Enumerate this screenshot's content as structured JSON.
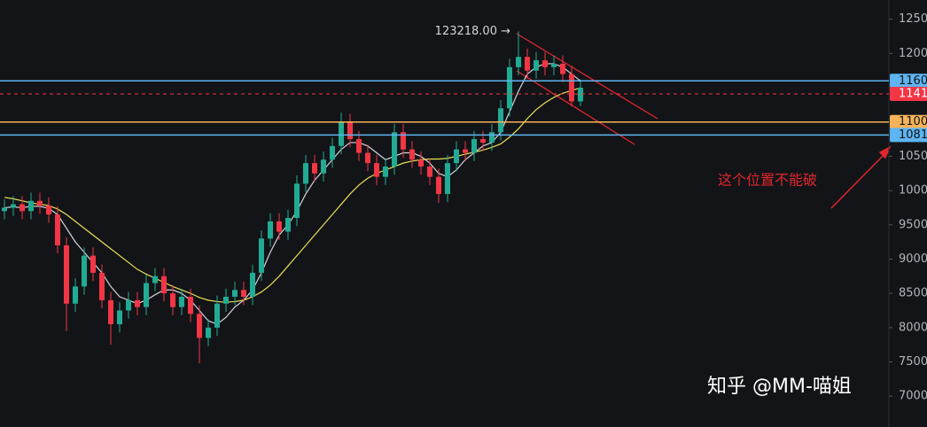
{
  "chart_data": {
    "type": "candlestick",
    "open": [
      97000,
      97500,
      98000,
      97000,
      98500,
      97800,
      96500,
      92000,
      83500,
      86000,
      90500,
      88000,
      84000,
      80500,
      82500,
      84000,
      83000,
      86500,
      87500,
      85000,
      83000,
      84500,
      82000,
      78500,
      80000,
      83500,
      84500,
      85500,
      84500,
      88000,
      93000,
      95500,
      94000,
      96000,
      101000,
      104000,
      102500,
      104500,
      106500,
      110000,
      107500,
      105500,
      104000,
      102000,
      103500,
      108500,
      106000,
      104500,
      103500,
      102000,
      99500,
      104000,
      106000,
      105500,
      107500,
      107000,
      108500,
      112000,
      118000,
      119500,
      117500,
      119000,
      118000,
      118500,
      117000,
      113000
    ],
    "high": [
      98700,
      99200,
      99200,
      99700,
      99700,
      99000,
      97700,
      93200,
      87200,
      91700,
      91700,
      89200,
      85200,
      83700,
      85200,
      85200,
      87700,
      88700,
      88700,
      86200,
      85700,
      85700,
      83200,
      81200,
      84700,
      85700,
      86700,
      86700,
      89200,
      94200,
      96700,
      96700,
      97200,
      102200,
      105200,
      105200,
      105700,
      107700,
      111400,
      111200,
      108700,
      106700,
      105200,
      104700,
      109700,
      109700,
      107200,
      105700,
      104700,
      103200,
      105200,
      107200,
      107200,
      108700,
      108700,
      109700,
      113200,
      119200,
      123218,
      120700,
      120200,
      120200,
      119700,
      119700,
      118200,
      116200
    ],
    "low": [
      95800,
      96300,
      95800,
      95800,
      96600,
      95300,
      90800,
      79500,
      82300,
      84800,
      86800,
      82800,
      77500,
      79300,
      81300,
      81800,
      81800,
      85300,
      83800,
      81800,
      81800,
      80800,
      74800,
      77300,
      78800,
      82300,
      83300,
      83300,
      83300,
      86800,
      91800,
      92800,
      92800,
      94800,
      99800,
      101300,
      101300,
      103300,
      105300,
      106300,
      104300,
      102800,
      100800,
      100800,
      102300,
      104800,
      103300,
      102300,
      100800,
      98200,
      98300,
      102800,
      104300,
      104300,
      105800,
      105800,
      107300,
      110800,
      116800,
      116300,
      116300,
      116800,
      116800,
      115800,
      112300,
      112300
    ],
    "close": [
      97500,
      98000,
      97000,
      98500,
      97800,
      96500,
      92000,
      83500,
      86000,
      90500,
      88000,
      84000,
      80500,
      82500,
      84000,
      83000,
      86500,
      87500,
      85000,
      83000,
      84500,
      82000,
      78500,
      80000,
      83500,
      84500,
      85500,
      84500,
      88000,
      93000,
      95500,
      94000,
      96000,
      101000,
      104000,
      102500,
      104500,
      106500,
      110000,
      107500,
      105500,
      104000,
      102000,
      103500,
      108500,
      106000,
      104500,
      103500,
      102000,
      99500,
      104000,
      106000,
      105500,
      107500,
      107000,
      108500,
      112000,
      118000,
      119500,
      117500,
      119000,
      118000,
      118500,
      117000,
      113000,
      115000
    ],
    "up_color": "#22ab94",
    "down_color": "#f23645",
    "series": [
      {
        "color": "#d1d4dc",
        "values": [
          97500,
          97600,
          97500,
          97700,
          97700,
          97400,
          96500,
          94500,
          92500,
          91000,
          89500,
          88000,
          86000,
          84500,
          84000,
          83500,
          84000,
          84800,
          85500,
          85500,
          85000,
          84000,
          82500,
          81000,
          80500,
          81500,
          83000,
          84000,
          85500,
          88000,
          91000,
          93500,
          95000,
          97000,
          99500,
          101500,
          103000,
          104500,
          106000,
          107000,
          107000,
          106500,
          105500,
          104500,
          105000,
          105500,
          105500,
          105000,
          104000,
          102500,
          102000,
          103000,
          104500,
          105500,
          106500,
          107000,
          108500,
          111500,
          114500,
          117000,
          118000,
          118500,
          118500,
          118000,
          117000,
          116000
        ]
      },
      {
        "color": "#e8e05a",
        "values": [
          99000,
          98800,
          98500,
          98200,
          98000,
          97800,
          97300,
          96500,
          95500,
          94500,
          93500,
          92500,
          91500,
          90500,
          89500,
          88500,
          87800,
          87200,
          86600,
          86000,
          85500,
          85000,
          84400,
          84000,
          83800,
          83700,
          83800,
          84000,
          84500,
          85200,
          86200,
          87500,
          89000,
          90500,
          92000,
          93500,
          95000,
          96500,
          98000,
          99500,
          100800,
          101800,
          102500,
          103000,
          103500,
          104000,
          104300,
          104500,
          104600,
          104600,
          104700,
          105000,
          105300,
          105600,
          105900,
          106300,
          106800,
          107800,
          109000,
          110500,
          111800,
          112800,
          113600,
          114200,
          114600,
          115000
        ]
      }
    ],
    "ylim": [
      65500,
      127800
    ],
    "yticks": [
      70000,
      75000,
      80000,
      85000,
      90000,
      95000,
      100000,
      105000,
      120000,
      125000
    ],
    "grid": false,
    "levels": [
      {
        "value": 116000,
        "color": "#5eb4f0"
      },
      {
        "value": 114100,
        "color": "#f23645",
        "dashed": true
      },
      {
        "value": 110000,
        "color": "#f5b35a"
      },
      {
        "value": 108100,
        "color": "#5eb4f0"
      }
    ],
    "high_label": {
      "value": 123218,
      "label": "123218.00 →"
    },
    "annotation": "这个位置不能破",
    "watermark": "知乎 @MM-喵姐"
  }
}
